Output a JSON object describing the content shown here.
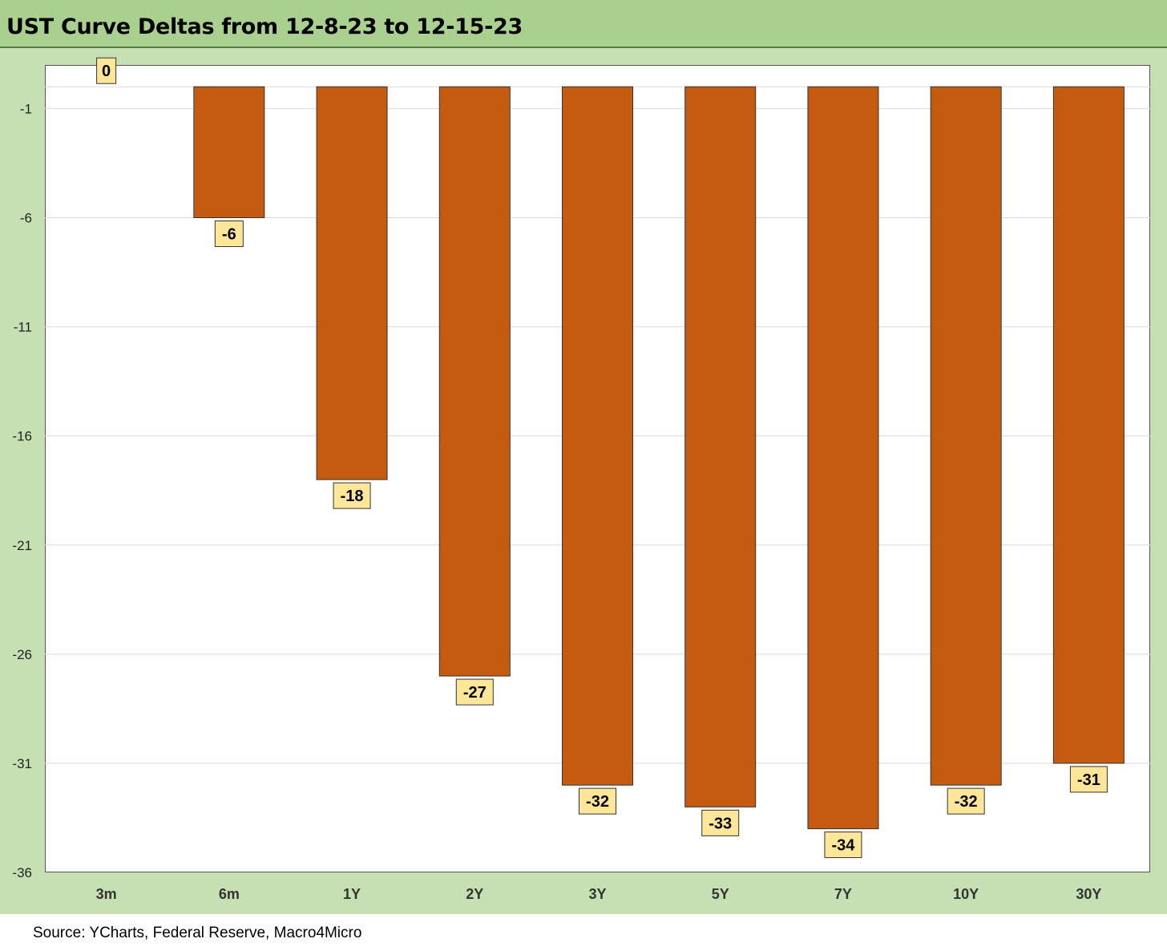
{
  "header": {
    "title": "UST Curve Deltas from 12-8-23 to 12-15-23"
  },
  "footer": {
    "source": "Source: YCharts, Federal Reserve, Macro4Micro"
  },
  "colors": {
    "bar": "#c55a11",
    "label_bg": "#ffe699",
    "title_bg": "#a9d08e",
    "chart_bg": "#c6e0b4"
  },
  "chart_data": {
    "type": "bar",
    "title": "UST Curve Deltas from 12-8-23 to 12-15-23",
    "xlabel": "",
    "ylabel": "",
    "categories": [
      "3m",
      "6m",
      "1Y",
      "2Y",
      "3Y",
      "5Y",
      "7Y",
      "10Y",
      "30Y"
    ],
    "values": [
      0,
      -6,
      -18,
      -27,
      -32,
      -33,
      -34,
      -32,
      -31
    ],
    "data_labels": [
      "0",
      "-6",
      "-18",
      "-27",
      "-32",
      "-33",
      "-34",
      "-32",
      "-31"
    ],
    "yticks": [
      -1,
      -6,
      -11,
      -16,
      -21,
      -26,
      -31,
      -36
    ],
    "ylim": [
      -36,
      1
    ],
    "grid": true,
    "legend": "none"
  }
}
